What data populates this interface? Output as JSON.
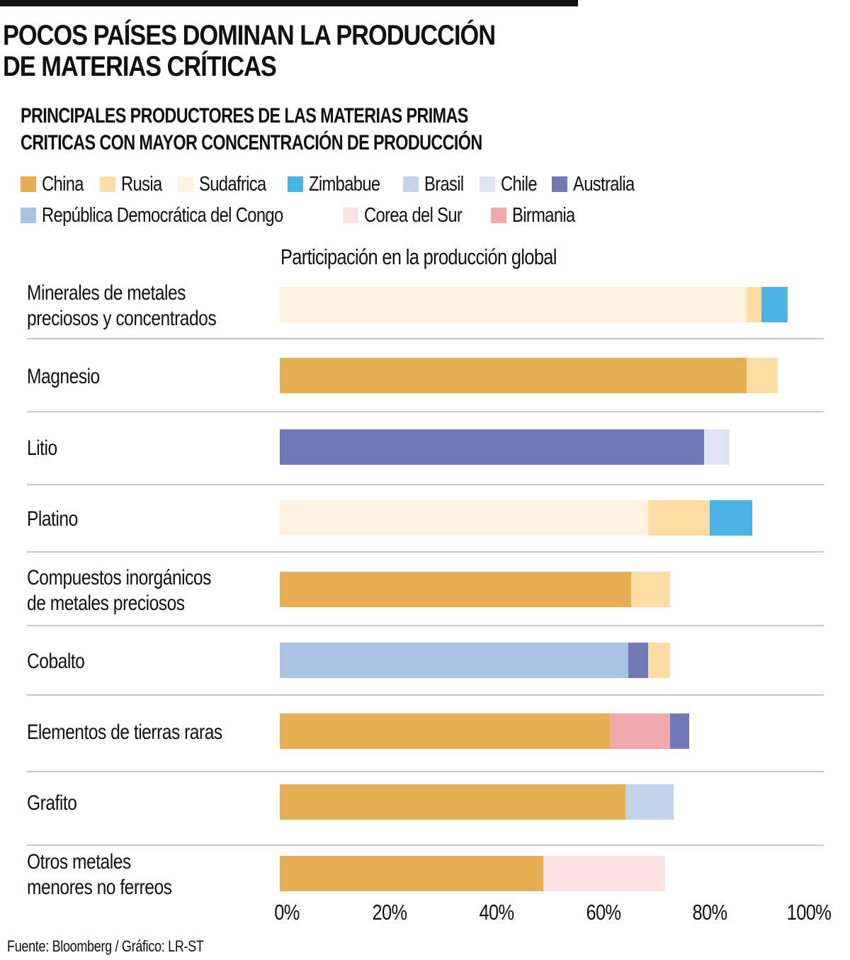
{
  "title": {
    "line1": "POCOS PAÍSES DOMINAN LA PRODUCCIÓN",
    "line2": "DE MATERIAS CRÍTICAS"
  },
  "subtitle": {
    "line1": "PRINCIPALES PRODUCTORES DE LAS MATERIAS PRIMAS",
    "line2": "CRITICAS CON MAYOR CONCENTRACIÓN DE PRODUCCIÓN"
  },
  "source": "Fuente: Bloomberg / Gráfico: LR-ST",
  "chart_data": {
    "type": "bar",
    "orientation": "horizontal",
    "stacked": true,
    "title": "PRINCIPALES PRODUCTORES DE LAS MATERIAS PRIMAS CRITICAS CON MAYOR CONCENTRACIÓN DE PRODUCCIÓN",
    "xlabel": "Participación en la producción global",
    "ylabel": "",
    "xlim": [
      0,
      100
    ],
    "x_ticks": [
      "0%",
      "20%",
      "40%",
      "60%",
      "80%",
      "100%"
    ],
    "grid": false,
    "legend_position": "top",
    "legend": [
      {
        "name": "China",
        "color": "#E5AF52"
      },
      {
        "name": "Rusia",
        "color": "#FDDDA3"
      },
      {
        "name": "Sudafrica",
        "color": "#FEF1E0"
      },
      {
        "name": "Zimbabue",
        "color": "#4BB3E3"
      },
      {
        "name": "Brasil",
        "color": "#C4D3EC"
      },
      {
        "name": "Chile",
        "color": "#DFE4F4"
      },
      {
        "name": "Australia",
        "color": "#7078B8"
      },
      {
        "name": "República Democrática del Congo",
        "color": "#AAC3E5"
      },
      {
        "name": "Corea del Sur",
        "color": "#FEE2E5"
      },
      {
        "name": "Birmania",
        "color": "#F2A9AE"
      }
    ],
    "legend_rows": [
      [
        0,
        1,
        2,
        3,
        4,
        5,
        6
      ],
      [
        7,
        8,
        9
      ]
    ],
    "categories": [
      {
        "label_lines": [
          "Minerales de metales",
          "preciosos y concentrados"
        ],
        "segments": [
          {
            "country": "Sudafrica",
            "value": 89.3
          },
          {
            "country": "Rusia",
            "value": 2.8
          },
          {
            "country": "Zimbabue",
            "value": 5.0
          }
        ]
      },
      {
        "label_lines": [
          "Magnesio"
        ],
        "segments": [
          {
            "country": "China",
            "value": 89.3
          },
          {
            "country": "Rusia",
            "value": 6.0
          }
        ]
      },
      {
        "label_lines": [
          "Litio"
        ],
        "segments": [
          {
            "country": "Australia",
            "value": 81.2
          },
          {
            "country": "Chile",
            "value": 4.9
          }
        ]
      },
      {
        "label_lines": [
          "Platino"
        ],
        "segments": [
          {
            "country": "Sudafrica",
            "value": 70.5
          },
          {
            "country": "Rusia",
            "value": 11.8
          },
          {
            "country": "Zimbabue",
            "value": 8.1
          }
        ]
      },
      {
        "label_lines": [
          "Compuestos inorgánicos",
          "de metales preciosos"
        ],
        "segments": [
          {
            "country": "China",
            "value": 67.2
          },
          {
            "country": "Rusia",
            "value": 7.5
          }
        ]
      },
      {
        "label_lines": [
          "Cobalto"
        ],
        "segments": [
          {
            "country": "República Democrática del Congo",
            "value": 66.7
          },
          {
            "country": "Australia",
            "value": 3.7
          },
          {
            "country": "Rusia",
            "value": 4.2
          }
        ]
      },
      {
        "label_lines": [
          "Elementos de tierras raras"
        ],
        "segments": [
          {
            "country": "China",
            "value": 63.1
          },
          {
            "country": "Birmania",
            "value": 11.5
          },
          {
            "country": "Australia",
            "value": 3.7
          }
        ]
      },
      {
        "label_lines": [
          "Grafito"
        ],
        "segments": [
          {
            "country": "China",
            "value": 66.1
          },
          {
            "country": "Brasil",
            "value": 9.2
          }
        ]
      },
      {
        "label_lines": [
          "Otros metales",
          "menores no ferreos"
        ],
        "segments": [
          {
            "country": "China",
            "value": 50.4
          },
          {
            "country": "Corea del Sur",
            "value": 23.3
          }
        ]
      }
    ]
  }
}
